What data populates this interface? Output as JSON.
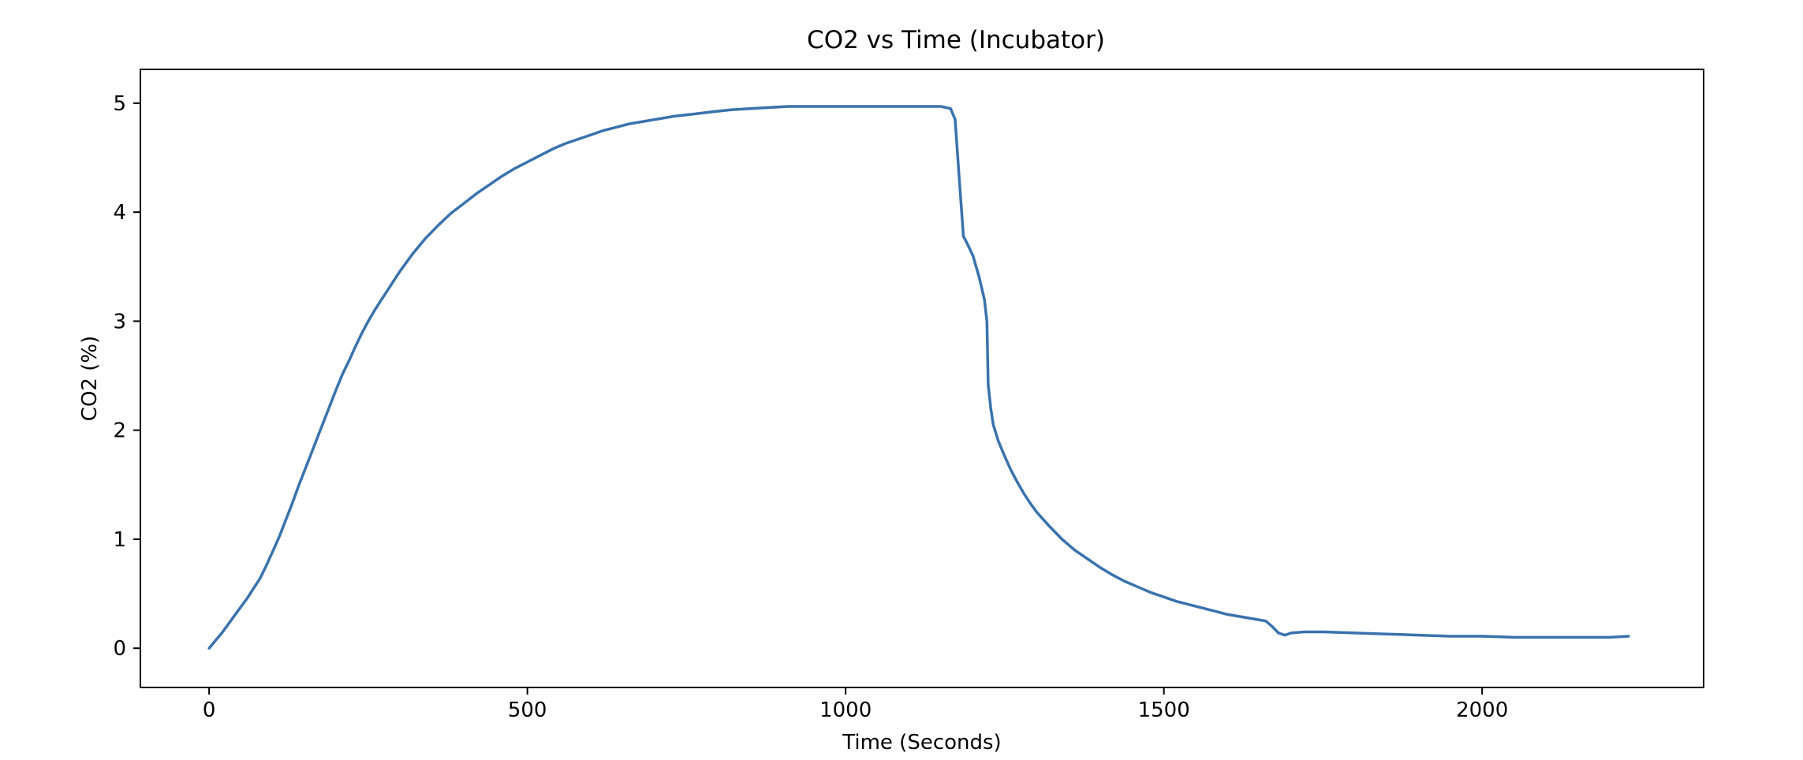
{
  "chart_data": {
    "type": "line",
    "title": "CO2 vs Time (Incubator)",
    "xlabel": "Time (Seconds)",
    "ylabel": "CO2 (%)",
    "xlim": [
      -108,
      2348
    ],
    "ylim": [
      -0.36,
      5.31
    ],
    "xticks": [
      {
        "value": 0,
        "label": "0"
      },
      {
        "value": 500,
        "label": "500"
      },
      {
        "value": 1000,
        "label": "1000"
      },
      {
        "value": 1500,
        "label": "1500"
      },
      {
        "value": 2000,
        "label": "2000"
      }
    ],
    "yticks": [
      {
        "value": 0,
        "label": "0"
      },
      {
        "value": 1,
        "label": "1"
      },
      {
        "value": 2,
        "label": "2"
      },
      {
        "value": 3,
        "label": "3"
      },
      {
        "value": 4,
        "label": "4"
      },
      {
        "value": 5,
        "label": "5"
      }
    ],
    "grid": false,
    "line_color": "#3a72ad",
    "series": [
      {
        "x": [
          0,
          10,
          20,
          30,
          40,
          50,
          60,
          70,
          80,
          90,
          100,
          110,
          120,
          130,
          140,
          150,
          160,
          170,
          180,
          190,
          200,
          210,
          220,
          230,
          240,
          250,
          260,
          270,
          280,
          290,
          300,
          320,
          340,
          360,
          380,
          400,
          420,
          440,
          460,
          480,
          500,
          520,
          540,
          560,
          580,
          600,
          620,
          640,
          660,
          680,
          700,
          730,
          760,
          790,
          820,
          850,
          880,
          910,
          940,
          970,
          1000,
          1030,
          1060,
          1090,
          1120,
          1150,
          1165,
          1172,
          1178,
          1185,
          1192,
          1200,
          1210,
          1218,
          1222,
          1224,
          1228,
          1232,
          1240,
          1250,
          1260,
          1270,
          1280,
          1290,
          1300,
          1320,
          1340,
          1360,
          1380,
          1400,
          1420,
          1440,
          1460,
          1480,
          1500,
          1520,
          1540,
          1560,
          1580,
          1600,
          1620,
          1640,
          1660,
          1670,
          1680,
          1690,
          1700,
          1720,
          1750,
          1800,
          1850,
          1900,
          1950,
          2000,
          2050,
          2100,
          2150,
          2200,
          2230
        ],
        "y": [
          0.0,
          0.07,
          0.14,
          0.22,
          0.3,
          0.38,
          0.46,
          0.55,
          0.64,
          0.76,
          0.89,
          1.02,
          1.17,
          1.32,
          1.48,
          1.63,
          1.78,
          1.93,
          2.08,
          2.23,
          2.38,
          2.52,
          2.64,
          2.77,
          2.89,
          3.0,
          3.1,
          3.19,
          3.28,
          3.37,
          3.46,
          3.62,
          3.76,
          3.88,
          3.99,
          4.08,
          4.17,
          4.25,
          4.33,
          4.4,
          4.46,
          4.52,
          4.58,
          4.63,
          4.67,
          4.71,
          4.75,
          4.78,
          4.81,
          4.83,
          4.85,
          4.88,
          4.9,
          4.92,
          4.94,
          4.95,
          4.96,
          4.97,
          4.97,
          4.97,
          4.97,
          4.97,
          4.97,
          4.97,
          4.97,
          4.97,
          4.95,
          4.85,
          4.35,
          3.78,
          3.7,
          3.6,
          3.4,
          3.2,
          3.0,
          2.42,
          2.2,
          2.05,
          1.9,
          1.76,
          1.63,
          1.52,
          1.42,
          1.33,
          1.25,
          1.12,
          1.0,
          0.9,
          0.82,
          0.74,
          0.67,
          0.61,
          0.56,
          0.51,
          0.47,
          0.43,
          0.4,
          0.37,
          0.34,
          0.31,
          0.29,
          0.27,
          0.25,
          0.2,
          0.14,
          0.12,
          0.14,
          0.15,
          0.15,
          0.14,
          0.13,
          0.12,
          0.11,
          0.11,
          0.1,
          0.1,
          0.1,
          0.1,
          0.11
        ]
      }
    ]
  }
}
